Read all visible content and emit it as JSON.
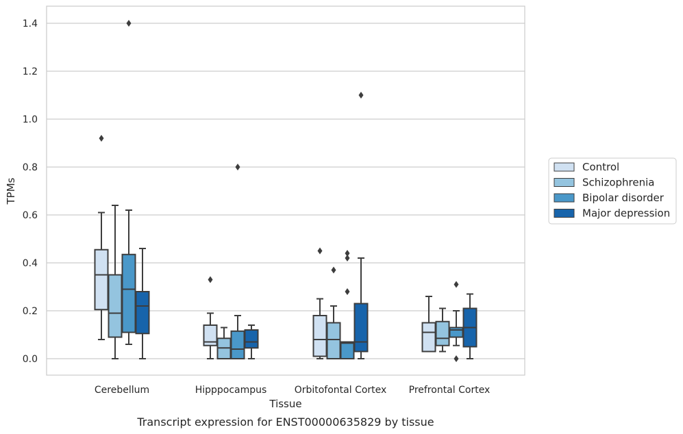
{
  "chart_data": {
    "type": "box",
    "title": "",
    "caption": "Transcript expression for ENST00000635829 by tissue",
    "xlabel": "Tissue",
    "ylabel": "TPMs",
    "ylim": [
      -0.067,
      1.47
    ],
    "yticks": [
      0.0,
      0.2,
      0.4,
      0.6,
      0.8,
      1.0,
      1.2,
      1.4
    ],
    "ytick_labels": [
      "0.0",
      "0.2",
      "0.4",
      "0.6",
      "0.8",
      "1.0",
      "1.2",
      "1.4"
    ],
    "grid": true,
    "legend_position": "right",
    "categories": [
      "Cerebellum",
      "Hipppocampus",
      "Orbitofontal Cortex",
      "Prefrontal Cortex"
    ],
    "series": [
      {
        "name": "Control",
        "color": "#d0e1f2",
        "boxes": [
          {
            "whislo": 0.08,
            "q1": 0.205,
            "med": 0.35,
            "q3": 0.455,
            "whishi": 0.61,
            "fliers": [
              0.92
            ]
          },
          {
            "whislo": 0.0,
            "q1": 0.055,
            "med": 0.07,
            "q3": 0.14,
            "whishi": 0.19,
            "fliers": [
              0.33
            ]
          },
          {
            "whislo": 0.0,
            "q1": 0.01,
            "med": 0.08,
            "q3": 0.18,
            "whishi": 0.25,
            "fliers": [
              0.45
            ]
          },
          {
            "whislo": 0.03,
            "q1": 0.03,
            "med": 0.11,
            "q3": 0.15,
            "whishi": 0.26,
            "fliers": []
          }
        ]
      },
      {
        "name": "Schizophrenia",
        "color": "#94c4df",
        "boxes": [
          {
            "whislo": 0.0,
            "q1": 0.09,
            "med": 0.19,
            "q3": 0.35,
            "whishi": 0.64,
            "fliers": []
          },
          {
            "whislo": 0.0,
            "q1": 0.0,
            "med": 0.045,
            "q3": 0.085,
            "whishi": 0.13,
            "fliers": []
          },
          {
            "whislo": 0.0,
            "q1": 0.0,
            "med": 0.08,
            "q3": 0.15,
            "whishi": 0.22,
            "fliers": [
              0.37
            ]
          },
          {
            "whislo": 0.03,
            "q1": 0.055,
            "med": 0.085,
            "q3": 0.155,
            "whishi": 0.21,
            "fliers": []
          }
        ]
      },
      {
        "name": "Bipolar disorder",
        "color": "#4a98c9",
        "boxes": [
          {
            "whislo": 0.06,
            "q1": 0.11,
            "med": 0.29,
            "q3": 0.435,
            "whishi": 0.62,
            "fliers": [
              1.4
            ]
          },
          {
            "whislo": 0.0,
            "q1": 0.0,
            "med": 0.04,
            "q3": 0.115,
            "whishi": 0.18,
            "fliers": [
              0.8
            ]
          },
          {
            "whislo": 0.0,
            "q1": 0.0,
            "med": 0.065,
            "q3": 0.07,
            "whishi": 0.07,
            "fliers": [
              0.28,
              0.42,
              0.44
            ]
          },
          {
            "whislo": 0.055,
            "q1": 0.09,
            "med": 0.12,
            "q3": 0.13,
            "whishi": 0.2,
            "fliers": [
              0.31,
              0.0
            ]
          }
        ]
      },
      {
        "name": "Major depression",
        "color": "#1764ab",
        "boxes": [
          {
            "whislo": 0.0,
            "q1": 0.105,
            "med": 0.22,
            "q3": 0.28,
            "whishi": 0.46,
            "fliers": []
          },
          {
            "whislo": 0.0,
            "q1": 0.045,
            "med": 0.07,
            "q3": 0.12,
            "whishi": 0.14,
            "fliers": []
          },
          {
            "whislo": 0.0,
            "q1": 0.03,
            "med": 0.07,
            "q3": 0.23,
            "whishi": 0.42,
            "fliers": [
              1.1
            ]
          },
          {
            "whislo": 0.0,
            "q1": 0.05,
            "med": 0.13,
            "q3": 0.21,
            "whishi": 0.27,
            "fliers": []
          }
        ]
      }
    ]
  }
}
